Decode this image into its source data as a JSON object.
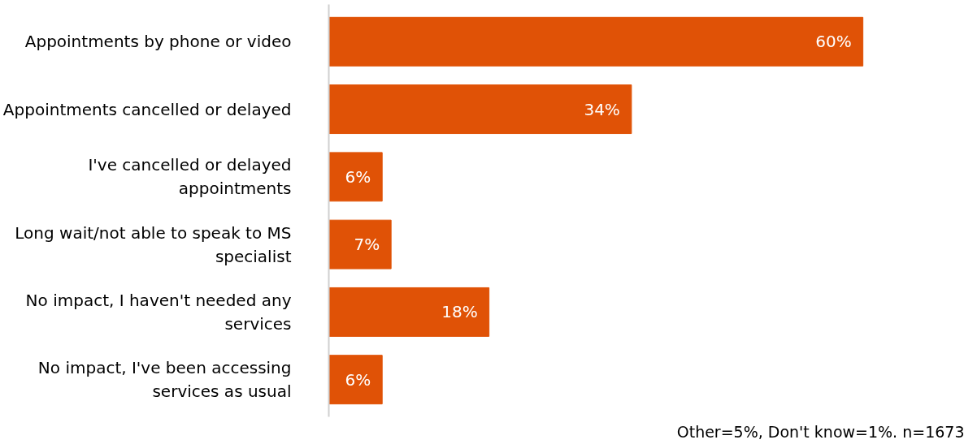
{
  "chart_data": {
    "type": "bar",
    "orientation": "horizontal",
    "categories": [
      "Appointments by phone or video",
      "Appointments cancelled or delayed",
      "I've cancelled or delayed appointments",
      "Long wait/not able to speak to MS specialist",
      "No impact, I haven't needed any services",
      "No impact, I've been accessing services as usual"
    ],
    "values": [
      60,
      34,
      6,
      7,
      18,
      6
    ],
    "color": "#e05206",
    "data_labels": true,
    "value_labels": [
      "60%",
      "34%",
      "6%",
      "7%",
      "18%",
      "6%"
    ],
    "grid": false,
    "annotations": [
      "Other=5%, Don't know=1%. n=1673"
    ]
  }
}
